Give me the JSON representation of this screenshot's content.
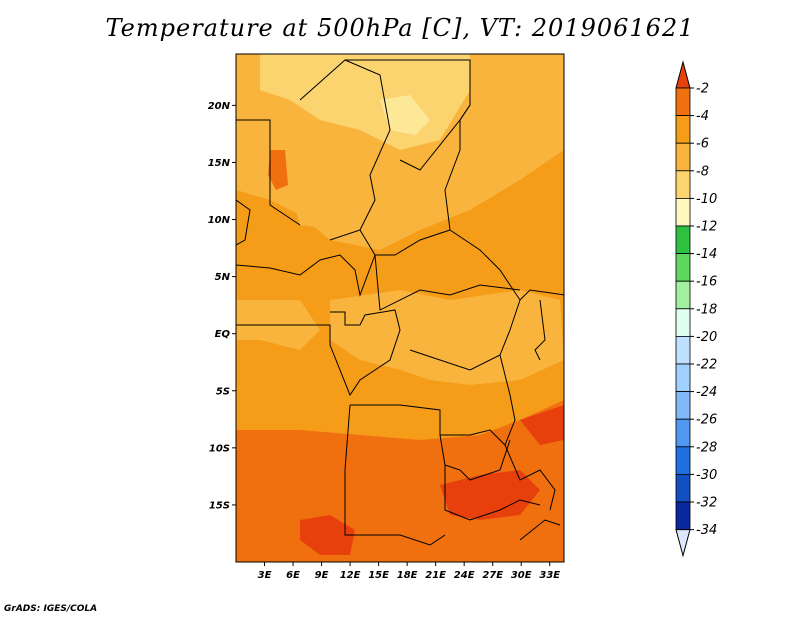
{
  "title": "Temperature at 500hPa [C], VT: 2019061621",
  "credit": "GrADS: IGES/COLA",
  "map": {
    "lat_ticks": [
      "20N",
      "15N",
      "10N",
      "5N",
      "EQ",
      "5S",
      "10S",
      "15S"
    ],
    "lon_ticks": [
      "3E",
      "6E",
      "9E",
      "12E",
      "15E",
      "18E",
      "21E",
      "24E",
      "27E",
      "30E",
      "33E"
    ],
    "lat_range": [
      -20,
      24.5
    ],
    "lon_range": [
      0,
      34.5
    ]
  },
  "colorbar": {
    "labels": [
      "-2",
      "-4",
      "-6",
      "-8",
      "-10",
      "-12",
      "-14",
      "-16",
      "-18",
      "-20",
      "-22",
      "-24",
      "-26",
      "-28",
      "-30",
      "-32",
      "-34"
    ],
    "colors": [
      "#e8400c",
      "#f07010",
      "#f59c18",
      "#f8b43c",
      "#fbd470",
      "#fff8c0",
      "#30c040",
      "#60d860",
      "#a0f0a0",
      "#e0fff0",
      "#c0e0ff",
      "#a0d0ff",
      "#80b8f8",
      "#5098f0",
      "#2070e0",
      "#1050c0",
      "#0828a0",
      "#001070"
    ]
  }
}
